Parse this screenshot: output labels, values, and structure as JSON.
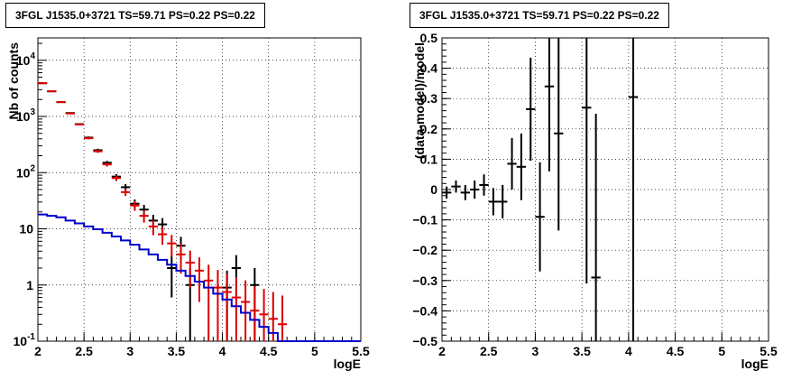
{
  "chart_data": [
    {
      "type": "line",
      "title": "3FGL J1535.0+3721 TS=59.71 PS=0.22 PS=0.22",
      "xlabel": "logE",
      "ylabel": "Nb of counts",
      "xlim": [
        2,
        5.5
      ],
      "ylim": [
        0.1,
        25000
      ],
      "yscale": "log",
      "grid": true,
      "x_ticks": [
        "2",
        "2.5",
        "3",
        "3.5",
        "4",
        "4.5",
        "5",
        "5.5"
      ],
      "y_ticks": [
        "10^-1",
        "1",
        "10",
        "10^2",
        "10^3",
        "10^4"
      ],
      "series": [
        {
          "name": "",
          "kind": "errorbar",
          "color": "#000000",
          "x": [
            2.05,
            2.15,
            2.25,
            2.35,
            2.45,
            2.55,
            2.65,
            2.75,
            2.85,
            2.95,
            3.05,
            3.15,
            3.25,
            3.35,
            3.45,
            3.55,
            3.65,
            3.75,
            3.85,
            3.95,
            4.05,
            4.15,
            4.25,
            4.35,
            4.45
          ],
          "y": [
            3900,
            2800,
            1800,
            1150,
            730,
            420,
            250,
            150,
            85,
            55,
            28,
            22,
            14,
            12,
            2,
            5,
            1,
            0,
            0,
            0,
            0.9,
            2,
            0,
            1,
            0
          ],
          "err": [
            62,
            53,
            42,
            34,
            27,
            20,
            16,
            12,
            9,
            7.4,
            5.3,
            4.7,
            3.7,
            3.5,
            1.4,
            2.2,
            1,
            0,
            0,
            0,
            0.9,
            1.4,
            0,
            1,
            0
          ]
        },
        {
          "name": "",
          "kind": "errorbar",
          "color": "#dd0000",
          "x": [
            2.05,
            2.15,
            2.25,
            2.35,
            2.45,
            2.55,
            2.65,
            2.75,
            2.85,
            2.95,
            3.05,
            3.15,
            3.25,
            3.35,
            3.45,
            3.55,
            3.65,
            3.75,
            3.85,
            3.95,
            4.05,
            4.15,
            4.25,
            4.35,
            4.45,
            4.55,
            4.65
          ],
          "y": [
            3900,
            2800,
            1800,
            1130,
            720,
            410,
            240,
            140,
            80,
            45,
            26,
            17,
            11,
            8,
            5.5,
            3.5,
            2.5,
            1.8,
            1.2,
            0.9,
            0.75,
            0.6,
            0.5,
            0.35,
            0.3,
            0.25,
            0.2
          ],
          "err": [
            62,
            53,
            42,
            34,
            27,
            20,
            15,
            12,
            9,
            6.7,
            5.1,
            4.1,
            3.3,
            2.8,
            2.3,
            1.9,
            1.6,
            1.3,
            1.1,
            0.95,
            0.87,
            0.77,
            0.71,
            0.59,
            0.55,
            0.5,
            0.45
          ]
        },
        {
          "name": "",
          "kind": "histogram",
          "color": "#0000cc",
          "edges": [
            2.0,
            2.1,
            2.2,
            2.3,
            2.4,
            2.5,
            2.6,
            2.7,
            2.8,
            2.9,
            3.0,
            3.1,
            3.2,
            3.3,
            3.4,
            3.5,
            3.6,
            3.7,
            3.8,
            3.9,
            4.0,
            4.1,
            4.2,
            4.3,
            4.4,
            4.5,
            4.6,
            4.7,
            4.8,
            4.9,
            5.0,
            5.1,
            5.2,
            5.3,
            5.4,
            5.5
          ],
          "values": [
            18,
            17,
            16,
            14,
            12.5,
            11,
            9.8,
            8.5,
            7.3,
            6.2,
            5.2,
            4.3,
            3.5,
            2.8,
            2.3,
            1.8,
            1.45,
            1.15,
            0.9,
            0.7,
            0.55,
            0.42,
            0.32,
            0.24,
            0.18,
            0.14,
            0.1,
            0.1,
            0.1,
            0.1,
            0.1,
            0.1,
            0.1,
            0.1,
            0.1
          ]
        }
      ]
    },
    {
      "type": "scatter",
      "title": "3FGL J1535.0+3721 TS=59.71 PS=0.22 PS=0.22",
      "xlabel": "logE",
      "ylabel": "(data-model)/model",
      "xlim": [
        2,
        5.5
      ],
      "ylim": [
        -0.5,
        0.5
      ],
      "grid": true,
      "x_ticks": [
        "2",
        "2.5",
        "3",
        "3.5",
        "4",
        "4.5",
        "5",
        "5.5"
      ],
      "y_ticks": [
        "-0.5",
        "-0.4",
        "-0.3",
        "-0.2",
        "-0.1",
        "0",
        "0.1",
        "0.2",
        "0.3",
        "0.4",
        "0.5"
      ],
      "series": [
        {
          "name": "",
          "kind": "errorbar",
          "color": "#000000",
          "x": [
            2.05,
            2.15,
            2.25,
            2.35,
            2.45,
            2.55,
            2.65,
            2.75,
            2.85,
            2.95,
            3.05,
            3.15,
            3.25,
            3.55,
            3.65,
            4.05
          ],
          "y": [
            -0.01,
            0.01,
            -0.01,
            0.0,
            0.015,
            -0.04,
            -0.04,
            0.085,
            0.075,
            0.265,
            -0.09,
            0.34,
            0.185,
            0.27,
            -0.29,
            0.305
          ],
          "err": [
            0.02,
            0.02,
            0.025,
            0.03,
            0.035,
            0.045,
            0.055,
            0.085,
            0.11,
            0.17,
            0.18,
            0.28,
            0.32,
            0.58,
            0.54,
            0.9
          ]
        }
      ]
    }
  ]
}
